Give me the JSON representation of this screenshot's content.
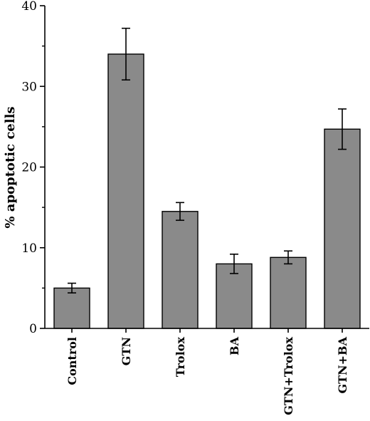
{
  "chart_data": {
    "type": "bar",
    "categories": [
      "Control",
      "GTN",
      "Trolox",
      "BA",
      "GTN+Trolox",
      "GTN+BA"
    ],
    "values": [
      5.0,
      34.0,
      14.5,
      8.0,
      8.8,
      24.7
    ],
    "errors": [
      0.6,
      3.2,
      1.1,
      1.2,
      0.8,
      2.5
    ],
    "title": "",
    "xlabel": "",
    "ylabel": "% apoptotic cells",
    "ylim": [
      0,
      40
    ],
    "yticks": [
      "0",
      "10",
      "20",
      "30",
      "40"
    ],
    "grid": false,
    "bar_color": "#8a8a8a"
  }
}
